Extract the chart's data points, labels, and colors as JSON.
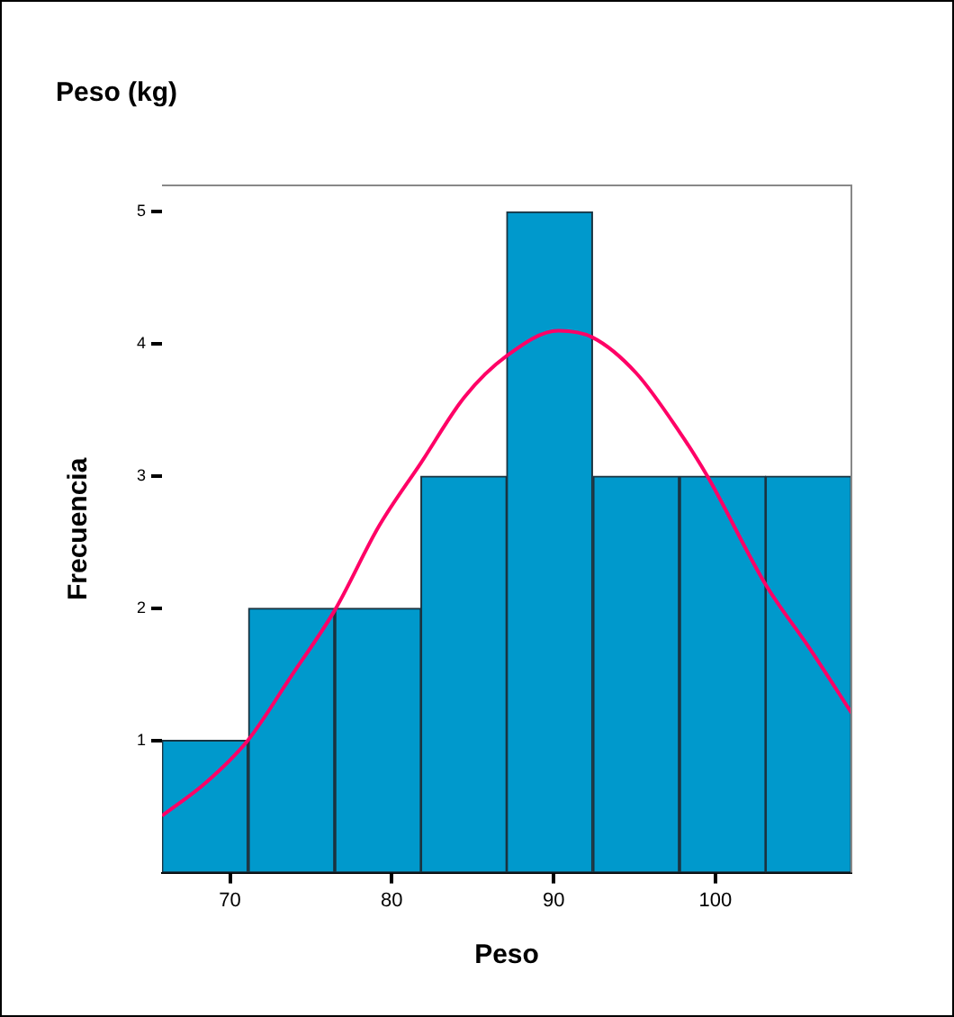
{
  "chart_data": {
    "type": "histogram",
    "title": "Peso (kg)",
    "xlabel": "Peso",
    "ylabel": "Frecuencia",
    "bins": [
      65.8,
      71.1,
      76.5,
      81.8,
      87.1,
      92.4,
      97.8,
      103.1,
      108.4
    ],
    "values": [
      1,
      2,
      2,
      3,
      5,
      3,
      3,
      3
    ],
    "color": "#0099cc",
    "series": [
      {
        "type": "line",
        "color": "#ff0066",
        "x": [
          65.8,
          68.5,
          71.1,
          73.8,
          76.5,
          79.2,
          81.8,
          84.5,
          87.1,
          90.3,
          92.4,
          95.1,
          97.8,
          99.5,
          103.1,
          105.8,
          108.4
        ],
        "values": [
          0.43,
          0.68,
          1.0,
          1.49,
          1.99,
          2.62,
          3.1,
          3.6,
          3.91,
          4.1,
          4.05,
          3.78,
          3.33,
          3.0,
          2.18,
          1.7,
          1.21
        ]
      }
    ],
    "xlim": [
      65.8,
      108.4
    ],
    "xticks": [
      70,
      80,
      90,
      100
    ],
    "ylim": [
      0,
      5.2
    ],
    "yticks": [
      1,
      2,
      3,
      4,
      5
    ],
    "grid": false,
    "legend": false
  }
}
